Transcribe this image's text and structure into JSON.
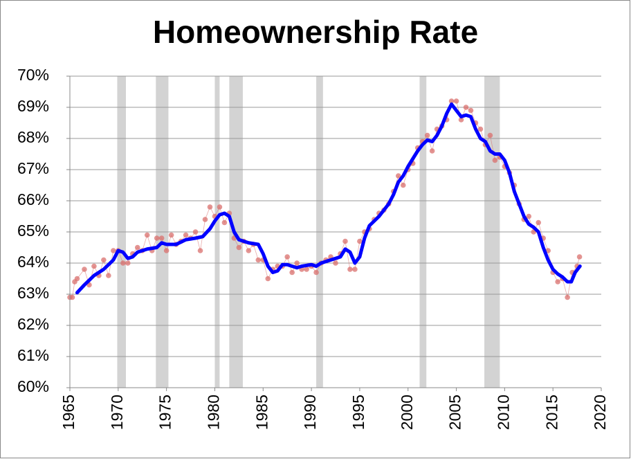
{
  "chart_data": {
    "type": "line",
    "title": "Homeownership Rate",
    "xlim": [
      1965,
      2020
    ],
    "xticks": [
      1965,
      1970,
      1975,
      1980,
      1985,
      1990,
      1995,
      2000,
      2005,
      2010,
      2015,
      2020
    ],
    "ylim": [
      60,
      70
    ],
    "yticks": [
      {
        "value": 60,
        "label": "60%"
      },
      {
        "value": 61,
        "label": "61%"
      },
      {
        "value": 62,
        "label": "62%"
      },
      {
        "value": 63,
        "label": "63%"
      },
      {
        "value": 64,
        "label": "64%"
      },
      {
        "value": 65,
        "label": "65%"
      },
      {
        "value": 66,
        "label": "66%"
      },
      {
        "value": 67,
        "label": "67%"
      },
      {
        "value": 68,
        "label": "68%"
      },
      {
        "value": 69,
        "label": "69%"
      },
      {
        "value": 70,
        "label": "70%"
      }
    ],
    "grid": true,
    "shaded_color": "#d3d3d3",
    "shaded_regions": [
      [
        1969.9,
        1970.8
      ],
      [
        1973.9,
        1975.2
      ],
      [
        1980.0,
        1980.5
      ],
      [
        1981.5,
        1982.9
      ],
      [
        1990.5,
        1991.2
      ],
      [
        2001.2,
        2001.9
      ],
      [
        2007.9,
        2009.5
      ]
    ],
    "series": [
      {
        "style": "markers",
        "color": "#d9706e",
        "x": [
          1965.0,
          1965.25,
          1965.5,
          1965.75,
          1966.5,
          1967.0,
          1967.5,
          1968.0,
          1968.5,
          1969.0,
          1969.5,
          1970.0,
          1970.5,
          1971.0,
          1971.5,
          1972.0,
          1972.5,
          1973.0,
          1973.5,
          1974.0,
          1974.5,
          1975.0,
          1975.5,
          1976.0,
          1976.5,
          1977.0,
          1977.5,
          1978.0,
          1978.5,
          1979.0,
          1979.5,
          1980.0,
          1980.5,
          1981.0,
          1981.5,
          1982.0,
          1982.5,
          1983.0,
          1983.5,
          1984.0,
          1984.5,
          1985.0,
          1985.5,
          1986.0,
          1986.5,
          1987.0,
          1987.5,
          1988.0,
          1988.5,
          1989.0,
          1989.5,
          1990.0,
          1990.5,
          1991.0,
          1991.5,
          1992.0,
          1992.5,
          1993.0,
          1993.5,
          1994.0,
          1994.5,
          1995.0,
          1995.5,
          1996.0,
          1996.5,
          1997.0,
          1997.5,
          1998.0,
          1998.5,
          1999.0,
          1999.5,
          2000.0,
          2000.5,
          2001.0,
          2001.5,
          2002.0,
          2002.5,
          2003.0,
          2003.5,
          2004.0,
          2004.5,
          2005.0,
          2005.5,
          2006.0,
          2006.5,
          2007.0,
          2007.5,
          2008.0,
          2008.5,
          2009.0,
          2009.5,
          2010.0,
          2010.5,
          2011.0,
          2011.5,
          2012.0,
          2012.5,
          2013.0,
          2013.5,
          2014.0,
          2014.5,
          2015.0,
          2015.5,
          2016.0,
          2016.5,
          2017.0,
          2017.5,
          2017.75
        ],
        "values": [
          62.9,
          62.9,
          63.4,
          63.5,
          63.8,
          63.3,
          63.9,
          63.6,
          64.1,
          63.6,
          64.4,
          64.4,
          64.0,
          64.0,
          64.3,
          64.5,
          64.4,
          64.9,
          64.4,
          64.8,
          64.8,
          64.4,
          64.9,
          64.6,
          64.7,
          64.9,
          64.8,
          65.0,
          64.4,
          65.4,
          65.8,
          65.5,
          65.8,
          65.3,
          65.6,
          64.8,
          64.5,
          64.7,
          64.4,
          64.6,
          64.1,
          64.1,
          63.5,
          63.8,
          63.9,
          63.9,
          64.2,
          63.7,
          64.0,
          63.8,
          63.8,
          63.9,
          63.7,
          64.0,
          64.1,
          64.2,
          64.0,
          64.3,
          64.7,
          63.8,
          63.8,
          64.7,
          65.0,
          65.1,
          65.4,
          65.6,
          65.7,
          65.9,
          66.3,
          66.8,
          66.5,
          67.0,
          67.2,
          67.7,
          67.9,
          68.1,
          67.6,
          68.3,
          68.4,
          68.6,
          69.2,
          69.2,
          68.6,
          69.0,
          68.9,
          68.5,
          68.3,
          67.8,
          68.1,
          67.3,
          67.4,
          67.1,
          66.9,
          66.5,
          65.9,
          65.4,
          65.5,
          65.0,
          65.3,
          64.8,
          64.4,
          63.7,
          63.4,
          63.5,
          62.9,
          63.7,
          63.9,
          64.2
        ]
      },
      {
        "style": "line",
        "color": "#0000ff",
        "x": [
          1965.75,
          1966.5,
          1967.5,
          1968.5,
          1969.5,
          1970.0,
          1970.5,
          1971.0,
          1971.5,
          1972.0,
          1973.0,
          1974.0,
          1974.5,
          1975.0,
          1976.0,
          1977.0,
          1978.0,
          1978.75,
          1979.5,
          1980.0,
          1980.5,
          1981.0,
          1981.5,
          1982.0,
          1982.5,
          1983.5,
          1984.5,
          1985.0,
          1985.5,
          1986.0,
          1986.5,
          1987.0,
          1987.5,
          1988.0,
          1988.5,
          1989.0,
          1990.0,
          1990.5,
          1991.0,
          1992.0,
          1993.0,
          1993.5,
          1994.0,
          1994.5,
          1995.0,
          1995.5,
          1996.0,
          1997.0,
          1998.0,
          1998.5,
          1999.0,
          1999.5,
          2000.0,
          2001.0,
          2001.5,
          2002.0,
          2002.5,
          2003.0,
          2003.5,
          2004.0,
          2004.5,
          2005.0,
          2005.5,
          2006.0,
          2006.5,
          2007.0,
          2007.5,
          2008.0,
          2008.5,
          2009.0,
          2009.5,
          2010.0,
          2010.5,
          2011.0,
          2011.5,
          2012.0,
          2012.5,
          2013.0,
          2013.5,
          2014.0,
          2014.5,
          2015.0,
          2015.5,
          2016.0,
          2016.5,
          2016.9,
          2017.3,
          2017.8
        ],
        "values": [
          63.05,
          63.3,
          63.6,
          63.8,
          64.1,
          64.4,
          64.35,
          64.15,
          64.2,
          64.35,
          64.45,
          64.5,
          64.65,
          64.6,
          64.6,
          64.75,
          64.8,
          64.85,
          65.1,
          65.35,
          65.55,
          65.6,
          65.5,
          65.0,
          64.75,
          64.65,
          64.6,
          64.3,
          63.9,
          63.7,
          63.75,
          63.95,
          63.95,
          63.9,
          63.85,
          63.9,
          63.95,
          63.9,
          64.0,
          64.1,
          64.2,
          64.45,
          64.35,
          64.0,
          64.2,
          64.8,
          65.2,
          65.5,
          65.9,
          66.2,
          66.6,
          66.8,
          67.1,
          67.6,
          67.8,
          67.95,
          67.9,
          68.1,
          68.4,
          68.8,
          69.1,
          68.9,
          68.7,
          68.75,
          68.7,
          68.3,
          68.0,
          67.9,
          67.6,
          67.5,
          67.5,
          67.3,
          66.9,
          66.3,
          65.9,
          65.5,
          65.25,
          65.15,
          65.0,
          64.5,
          64.1,
          63.8,
          63.65,
          63.55,
          63.4,
          63.4,
          63.7,
          63.9
        ]
      }
    ]
  }
}
